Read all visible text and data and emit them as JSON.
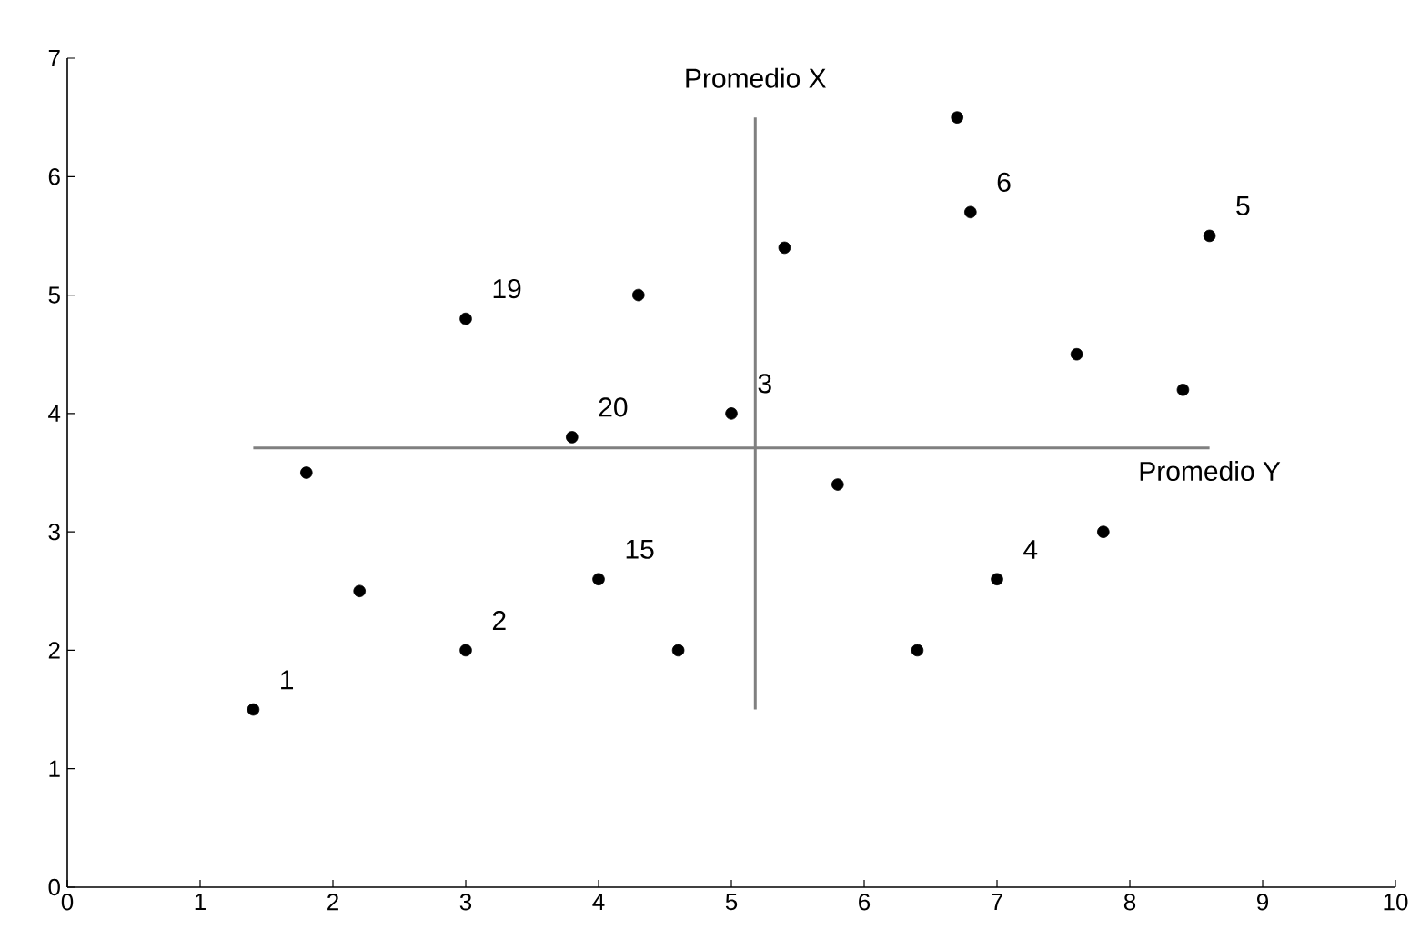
{
  "chart_data": {
    "type": "scatter",
    "x": [
      1.4,
      1.8,
      2.2,
      3.0,
      3.0,
      3.8,
      4.0,
      4.3,
      4.6,
      5.0,
      5.4,
      5.8,
      6.4,
      6.7,
      6.8,
      7.0,
      7.6,
      7.8,
      8.4,
      8.6
    ],
    "values": [
      1.5,
      3.5,
      2.5,
      2.0,
      4.8,
      3.8,
      2.6,
      5.0,
      2.0,
      4.0,
      5.4,
      3.4,
      2.0,
      6.5,
      5.7,
      2.6,
      4.5,
      3.0,
      4.2,
      5.5
    ],
    "color": "#000000",
    "marker": "circle",
    "xlim": [
      0,
      10
    ],
    "xticks": [
      0,
      1,
      2,
      3,
      4,
      5,
      6,
      7,
      8,
      9,
      10
    ],
    "ylim": [
      0,
      7
    ],
    "yticks": [
      0,
      1,
      2,
      3,
      4,
      5,
      6,
      7
    ],
    "grid": false,
    "ref_lines": [
      {
        "axis": "x",
        "value": 5.18,
        "label": "Promedio X",
        "color": "#808080"
      },
      {
        "axis": "y",
        "value": 3.71,
        "label": "Promedio Y",
        "color": "#808080"
      }
    ],
    "annotations": [
      {
        "text": "1",
        "x": 1.4,
        "y": 1.5
      },
      {
        "text": "2",
        "x": 3.0,
        "y": 2.0
      },
      {
        "text": "19",
        "x": 3.0,
        "y": 4.8
      },
      {
        "text": "20",
        "x": 3.8,
        "y": 3.8
      },
      {
        "text": "15",
        "x": 4.0,
        "y": 2.6
      },
      {
        "text": "3",
        "x": 5.0,
        "y": 4.0
      },
      {
        "text": "6",
        "x": 6.8,
        "y": 5.7
      },
      {
        "text": "4",
        "x": 7.0,
        "y": 2.6
      },
      {
        "text": "5",
        "x": 8.6,
        "y": 5.5
      }
    ]
  }
}
